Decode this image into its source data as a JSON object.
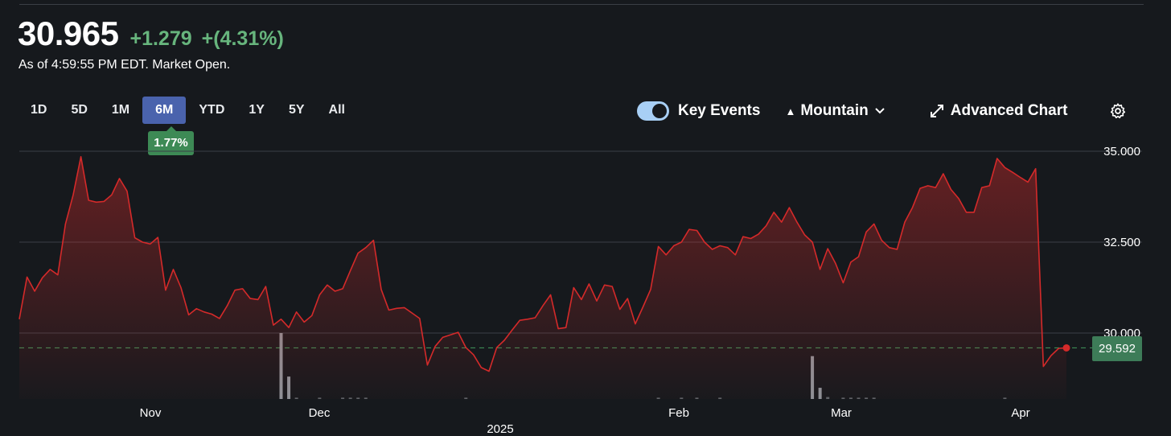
{
  "quote": {
    "price": "30.965",
    "change": "+1.279",
    "change_pct": "+(4.31%)",
    "as_of": "As of 4:59:55 PM EDT. Market Open."
  },
  "ranges": [
    "1D",
    "5D",
    "1M",
    "6M",
    "YTD",
    "1Y",
    "5Y",
    "All"
  ],
  "active_range": "6M",
  "range_return": "1.77%",
  "controls": {
    "key_events_label": "Key Events",
    "key_events_on": true,
    "chart_style": "Mountain",
    "advanced_chart": "Advanced Chart"
  },
  "colors": {
    "background": "#16191d",
    "line": "#d42a2a",
    "up": "#67b57d",
    "active_range": "#4a63ad",
    "volume": "#9aa0a6"
  },
  "chart_data": {
    "type": "area",
    "y_ticks": [
      "35.000",
      "32.500",
      "30.000"
    ],
    "x_tick_labels": [
      "Nov",
      "Dec",
      "2025",
      "Feb",
      "Mar",
      "Apr"
    ],
    "ylim": [
      28.2,
      35.4
    ],
    "last_value": "29.592",
    "reference_line": 29.592,
    "series": [
      {
        "values": [
          30.38,
          31.54,
          31.15,
          31.52,
          31.75,
          31.6,
          33.0,
          33.8,
          34.85,
          33.65,
          33.6,
          33.62,
          33.8,
          34.25,
          33.9,
          32.62,
          32.5,
          32.45,
          32.63,
          31.18,
          31.75,
          31.25,
          30.5,
          30.67,
          30.58,
          30.52,
          30.4,
          30.75,
          31.18,
          31.22,
          30.95,
          30.92,
          31.28,
          30.22,
          30.38,
          30.15,
          30.58,
          30.3,
          30.48,
          31.05,
          31.32,
          31.15,
          31.22,
          31.72,
          32.2,
          32.35,
          32.55,
          31.2,
          30.63,
          30.68,
          30.7,
          30.55,
          30.4,
          29.12,
          29.63,
          29.88,
          29.95,
          30.02,
          29.6,
          29.4,
          29.05,
          28.95,
          29.6,
          29.8,
          30.08,
          30.35,
          30.38,
          30.42,
          30.75,
          31.05,
          30.12,
          30.15,
          31.25,
          30.92,
          31.35,
          30.88,
          31.32,
          31.28,
          30.65,
          30.95,
          30.25,
          30.72,
          31.2,
          32.38,
          32.15,
          32.4,
          32.5,
          32.85,
          32.82,
          32.5,
          32.3,
          32.4,
          32.35,
          32.15,
          32.65,
          32.6,
          32.72,
          32.95,
          33.32,
          33.05,
          33.45,
          33.05,
          32.7,
          32.5,
          31.75,
          32.32,
          31.92,
          31.38,
          31.95,
          32.1,
          32.78,
          33.0,
          32.55,
          32.35,
          32.3,
          33.05,
          33.45,
          33.98,
          34.05,
          34.0,
          34.38,
          33.95,
          33.7,
          33.32,
          33.32,
          34.0,
          34.05,
          34.8,
          34.55,
          34.42,
          34.28,
          34.15,
          34.52,
          29.08,
          29.38,
          29.58,
          29.592
        ]
      }
    ],
    "volume": {
      "description_axis": "none",
      "bars": [
        0.0,
        0.0,
        0.0,
        0.0,
        0.0,
        0.0,
        0.0,
        0.0,
        0.0,
        0.0,
        0.0,
        0.0,
        0.0,
        0.0,
        0.0,
        0.0,
        0.0,
        0.0,
        0.0,
        0.0,
        0.0,
        0.0,
        0.0,
        0.0,
        0.0,
        0.0,
        0.0,
        0.0,
        0.0,
        0.0,
        0.0,
        0.0,
        0.0,
        0.0,
        1.0,
        0.34,
        0.02,
        0.0,
        0.0,
        0.02,
        0.0,
        0.0,
        0.02,
        0.02,
        0.02,
        0.02,
        0.0,
        0.0,
        0.0,
        0.0,
        0.0,
        0.0,
        0.0,
        0.0,
        0.0,
        0.0,
        0.0,
        0.0,
        0.02,
        0.0,
        0.0,
        0.0,
        0.0,
        0.0,
        0.0,
        0.0,
        0.0,
        0.0,
        0.0,
        0.0,
        0.0,
        0.0,
        0.0,
        0.0,
        0.0,
        0.0,
        0.0,
        0.0,
        0.0,
        0.0,
        0.0,
        0.0,
        0.0,
        0.02,
        0.0,
        0.0,
        0.02,
        0.0,
        0.02,
        0.0,
        0.0,
        0.02,
        0.0,
        0.0,
        0.0,
        0.0,
        0.0,
        0.0,
        0.0,
        0.0,
        0.0,
        0.0,
        0.0,
        0.65,
        0.17,
        0.03,
        0.0,
        0.02,
        0.02,
        0.02,
        0.02,
        0.02,
        0.0,
        0.0,
        0.0,
        0.0,
        0.0,
        0.0,
        0.0,
        0.0,
        0.0,
        0.0,
        0.0,
        0.0,
        0.0,
        0.0,
        0.0,
        0.0,
        0.02,
        0.0,
        0.0,
        0.0,
        0.0,
        0.0,
        0.0,
        0.0,
        0.0,
        0.0,
        0.0,
        0.0,
        0.0
      ]
    }
  }
}
